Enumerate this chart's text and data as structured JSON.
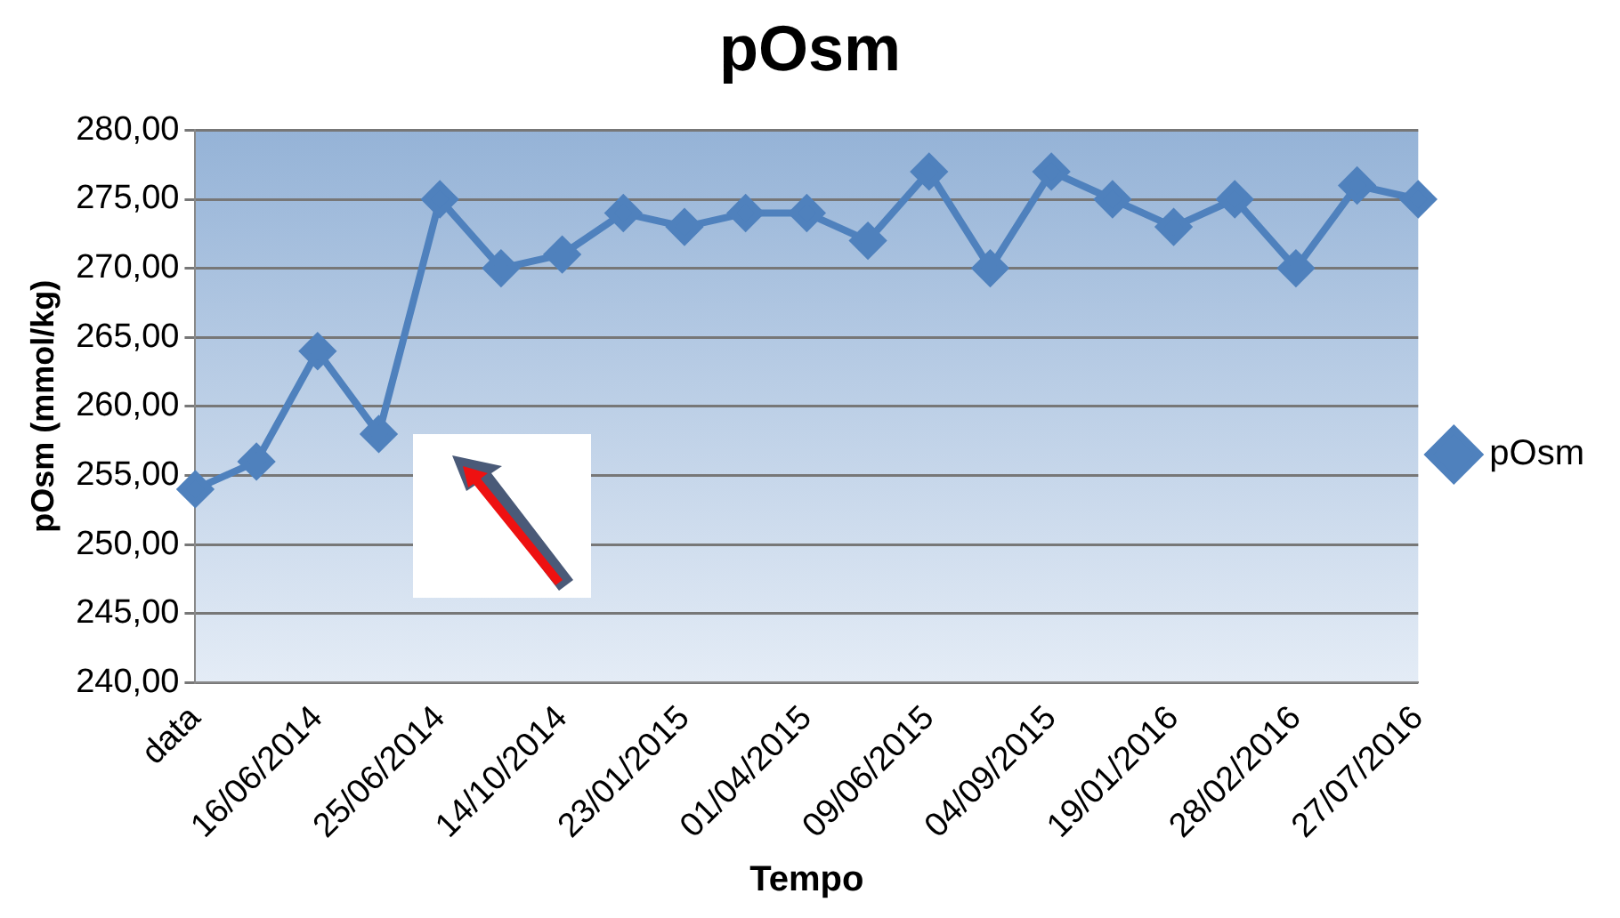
{
  "chart_data": {
    "type": "line",
    "title": "pOsm",
    "xlabel": "Tempo",
    "ylabel": "pOsm (mmol/kg)",
    "categories": [
      "data",
      null,
      "16/06/2014",
      null,
      "25/06/2014",
      null,
      "14/10/2014",
      null,
      "23/01/2015",
      null,
      "01/04/2015",
      null,
      "09/06/2015",
      null,
      "04/09/2015",
      null,
      "19/01/2016",
      null,
      "28/02/2016",
      null,
      "27/07/2016"
    ],
    "series": [
      {
        "name": "pOsm",
        "color": "#4f81bd",
        "values": [
          254,
          256,
          264,
          258,
          275,
          270,
          271,
          274,
          273,
          274,
          274,
          272,
          277,
          270,
          277,
          275,
          273,
          275,
          270,
          276,
          275
        ]
      }
    ],
    "ylim": [
      240,
      280
    ],
    "yticks": [
      {
        "value": 240,
        "label": "240,00"
      },
      {
        "value": 245,
        "label": "245,00"
      },
      {
        "value": 250,
        "label": "250,00"
      },
      {
        "value": 255,
        "label": "255,00"
      },
      {
        "value": 260,
        "label": "260,00"
      },
      {
        "value": 265,
        "label": "265,00"
      },
      {
        "value": 270,
        "label": "270,00"
      },
      {
        "value": 275,
        "label": "275,00"
      },
      {
        "value": 280,
        "label": "280,00"
      }
    ],
    "grid": "y",
    "legend": "right",
    "marker": "diamond",
    "line_style": "solid"
  }
}
